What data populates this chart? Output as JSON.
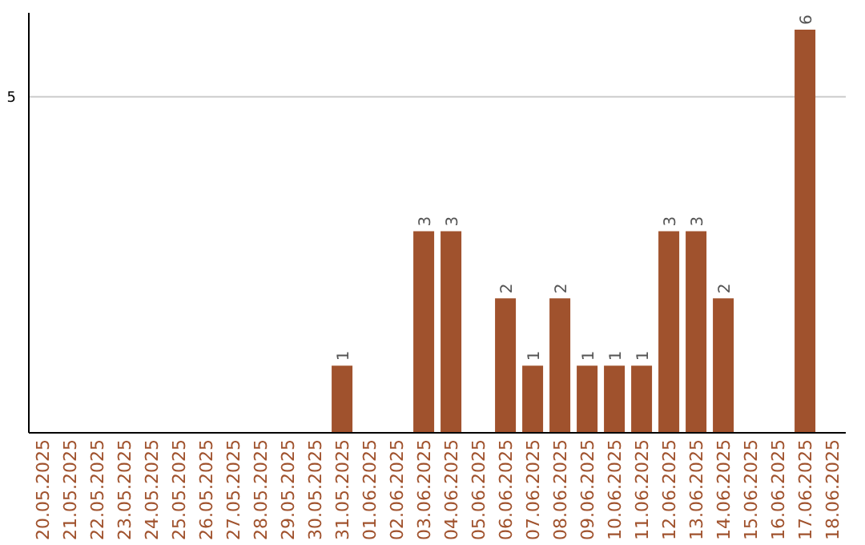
{
  "chart_data": {
    "type": "bar",
    "categories": [
      "20.05.2025",
      "21.05.2025",
      "22.05.2025",
      "23.05.2025",
      "24.05.2025",
      "25.05.2025",
      "26.05.2025",
      "27.05.2025",
      "28.05.2025",
      "29.05.2025",
      "30.05.2025",
      "31.05.2025",
      "01.06.2025",
      "02.06.2025",
      "03.06.2025",
      "04.06.2025",
      "05.06.2025",
      "06.06.2025",
      "07.06.2025",
      "08.06.2025",
      "09.06.2025",
      "10.06.2025",
      "11.06.2025",
      "12.06.2025",
      "13.06.2025",
      "14.06.2025",
      "15.06.2025",
      "16.06.2025",
      "17.06.2025",
      "18.06.2025"
    ],
    "values": [
      null,
      null,
      null,
      null,
      null,
      null,
      null,
      null,
      null,
      null,
      null,
      1,
      null,
      null,
      3,
      3,
      null,
      2,
      1,
      2,
      1,
      1,
      1,
      3,
      3,
      2,
      null,
      null,
      6,
      null
    ],
    "color": "#a0522d",
    "ylim": [
      0,
      6.25
    ],
    "yticks": [
      5
    ],
    "grid": "y",
    "data_labels": true
  }
}
